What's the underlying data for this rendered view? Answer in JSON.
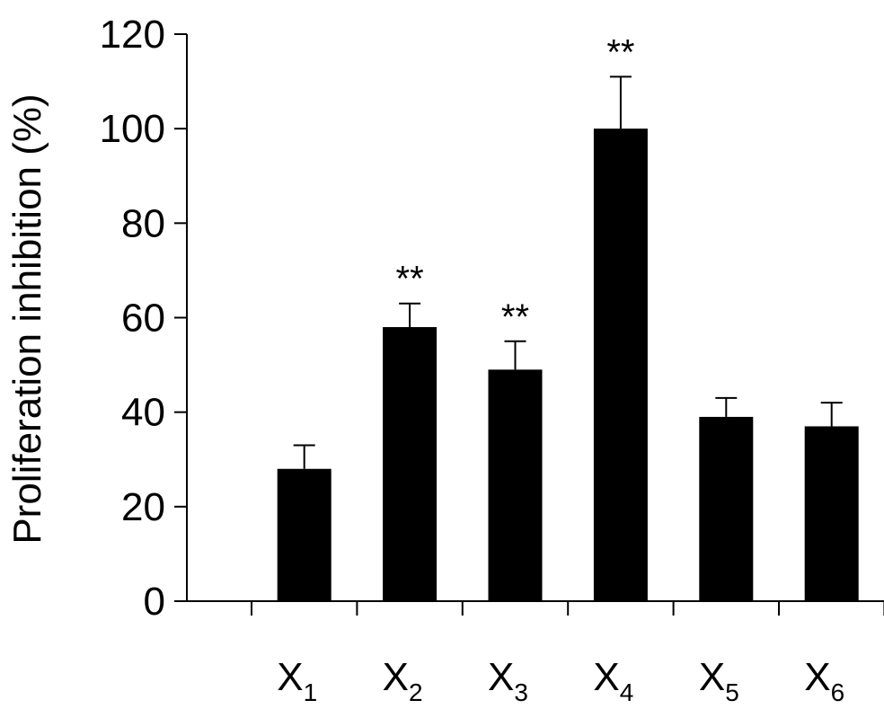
{
  "chart_data": {
    "type": "bar",
    "categories": [
      {
        "main": "X",
        "sub": "1"
      },
      {
        "main": "X",
        "sub": "2"
      },
      {
        "main": "X",
        "sub": "3"
      },
      {
        "main": "X",
        "sub": "4"
      },
      {
        "main": "X",
        "sub": "5"
      },
      {
        "main": "X",
        "sub": "6"
      }
    ],
    "values": [
      28,
      58,
      49,
      100,
      39,
      37
    ],
    "error_plus": [
      5,
      5,
      6,
      11,
      4,
      5
    ],
    "significance": [
      "",
      "**",
      "**",
      "**",
      "",
      ""
    ],
    "ylabel": "Proliferation inhibition (%)",
    "ylim": [
      0,
      120
    ],
    "yticks": [
      0,
      20,
      40,
      60,
      80,
      100,
      120
    ],
    "bar_color": "#000000",
    "grid": false
  }
}
